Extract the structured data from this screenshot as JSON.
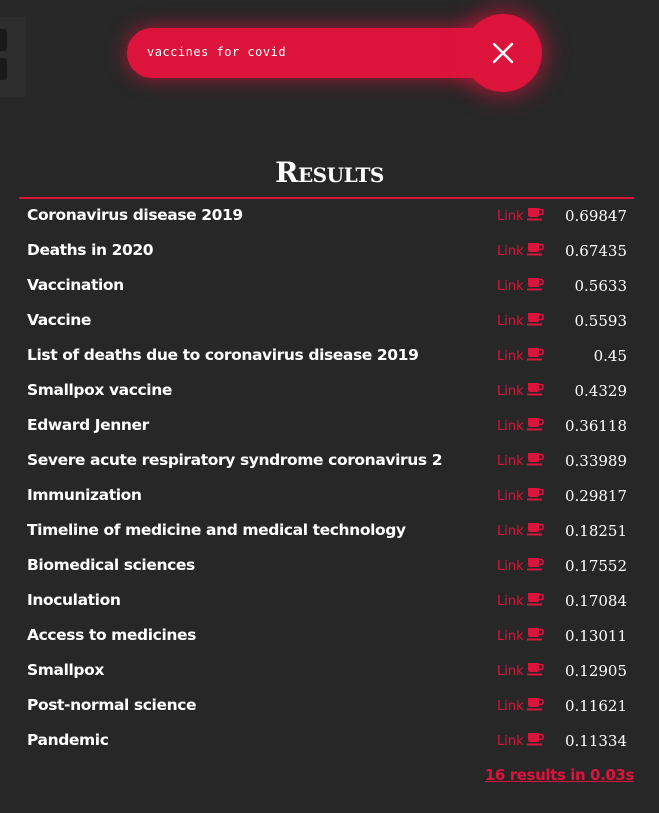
{
  "search": {
    "value": "vaccines for covid"
  },
  "heading": "Results",
  "link_label": "Link",
  "results": [
    {
      "title": "Coronavirus disease 2019",
      "score": "0.69847"
    },
    {
      "title": "Deaths in 2020",
      "score": "0.67435"
    },
    {
      "title": "Vaccination",
      "score": "0.5633"
    },
    {
      "title": "Vaccine",
      "score": "0.5593"
    },
    {
      "title": "List of deaths due to coronavirus disease 2019",
      "score": "0.45"
    },
    {
      "title": "Smallpox vaccine",
      "score": "0.4329"
    },
    {
      "title": "Edward Jenner",
      "score": "0.36118"
    },
    {
      "title": "Severe acute respiratory syndrome coronavirus 2",
      "score": "0.33989"
    },
    {
      "title": "Immunization",
      "score": "0.29817"
    },
    {
      "title": "Timeline of medicine and medical technology",
      "score": "0.18251"
    },
    {
      "title": "Biomedical sciences",
      "score": "0.17552"
    },
    {
      "title": "Inoculation",
      "score": "0.17084"
    },
    {
      "title": "Access to medicines",
      "score": "0.13011"
    },
    {
      "title": "Smallpox",
      "score": "0.12905"
    },
    {
      "title": "Post-normal science",
      "score": "0.11621"
    },
    {
      "title": "Pandemic",
      "score": "0.11334"
    }
  ],
  "summary": "16 results in 0.03s",
  "icons": {
    "clear": "close-icon",
    "link": "coffee-cup-icon"
  },
  "colors": {
    "accent": "#dc143c",
    "background": "#272727",
    "text": "#ffffff"
  }
}
